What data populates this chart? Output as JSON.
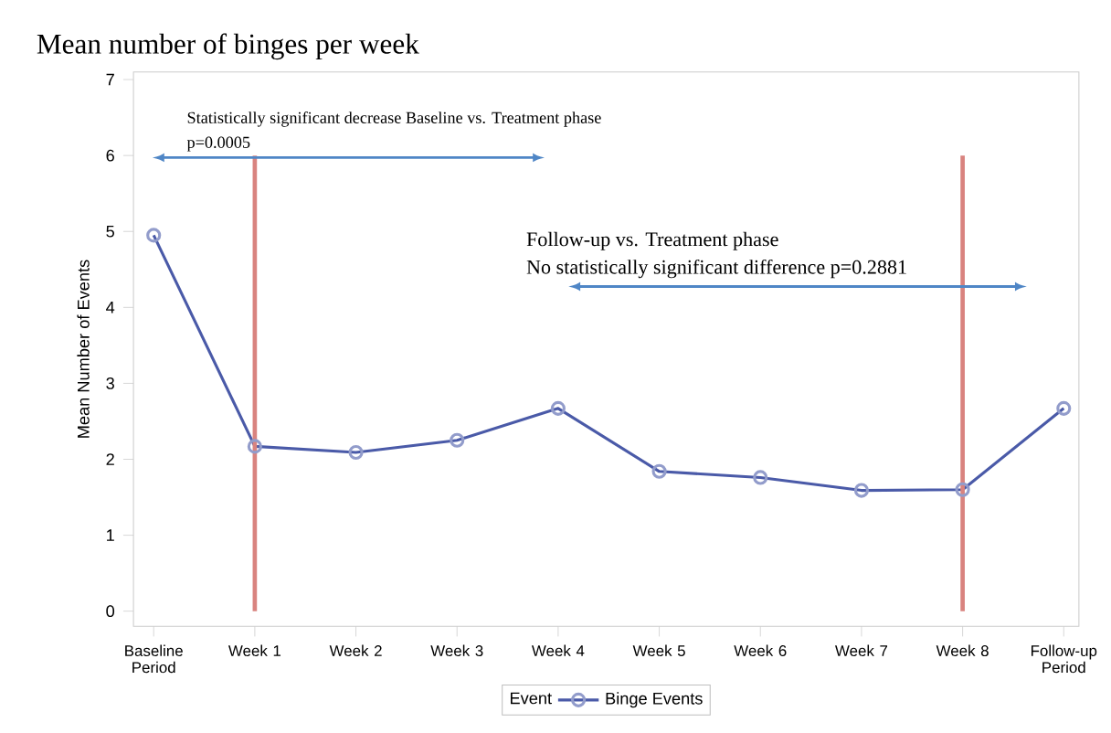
{
  "chart_data": {
    "type": "line",
    "title": "Mean number of binges per week",
    "ylabel": "Mean Number of Events",
    "legend_title": "Event",
    "categories": [
      "Baseline Period",
      "Week 1",
      "Week 2",
      "Week 3",
      "Week 4",
      "Week 5",
      "Week 6",
      "Week 7",
      "Week 8",
      "Follow-up Period"
    ],
    "series": [
      {
        "name": "Binge Events",
        "color": "#4a5aa8",
        "values": [
          4.95,
          2.17,
          2.09,
          2.25,
          2.67,
          1.84,
          1.76,
          1.59,
          1.6,
          2.67
        ]
      }
    ],
    "ylim": [
      -0.2,
      7.1
    ],
    "yticks": [
      0,
      1,
      2,
      3,
      4,
      5,
      6,
      7
    ],
    "ref_lines": [
      {
        "axis": "x",
        "value": "Week 1",
        "color": "#d9837f"
      },
      {
        "axis": "x",
        "value": "Week 8",
        "color": "#d9837f"
      }
    ],
    "annotations": [
      "Statistically significant decrease Baseline vs. Treatment phase",
      "p=0.0005",
      "Follow-up vs. Treatment phase",
      "No statistically significant difference p=0.2881"
    ],
    "legend": "bottom",
    "marker": "circle",
    "line_style": "solid",
    "grid": false
  }
}
